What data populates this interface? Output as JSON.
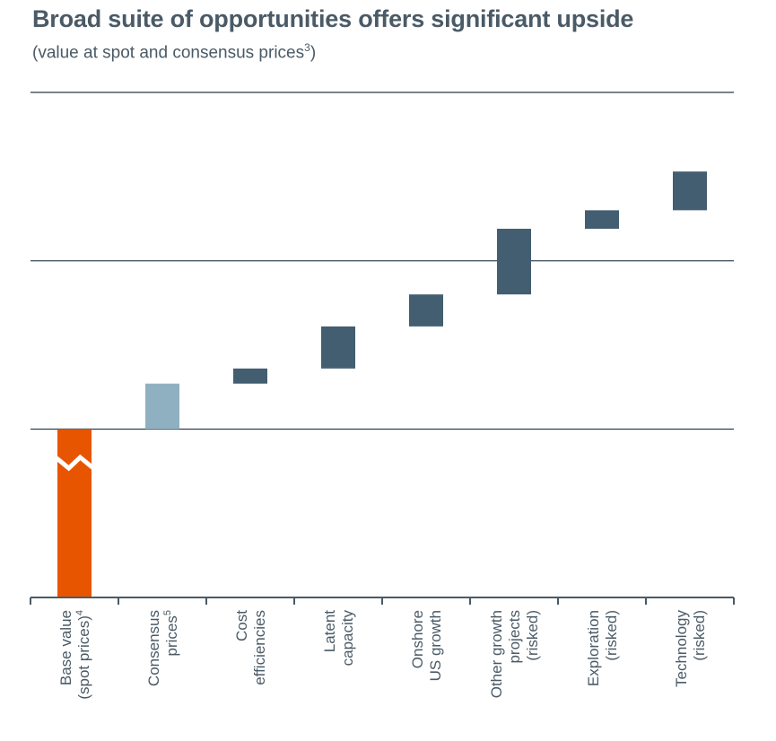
{
  "title": "Broad suite of opportunities offers significant upside",
  "subtitle": "(value at spot and consensus prices",
  "subtitle_sup": "3",
  "subtitle_close": ")",
  "colors": {
    "base": "#e85500",
    "consensus": "#8fb0c0",
    "increment": "#435e70",
    "grid": "#4a5a66",
    "text": "#4a5a66"
  },
  "chart_data": {
    "type": "bar",
    "subtype": "waterfall",
    "categories": [
      {
        "lines": [
          "Base value",
          "(spot prices)"
        ],
        "sup": "4"
      },
      {
        "lines": [
          "Consensus",
          "prices"
        ],
        "sup": "5"
      },
      {
        "lines": [
          "Cost",
          "efficiencies"
        ],
        "sup": ""
      },
      {
        "lines": [
          "Latent",
          "capacity"
        ],
        "sup": ""
      },
      {
        "lines": [
          "Onshore",
          "US growth"
        ],
        "sup": ""
      },
      {
        "lines": [
          "Other growth",
          "projects",
          "(risked)"
        ],
        "sup": ""
      },
      {
        "lines": [
          "Exploration",
          "(risked)"
        ],
        "sup": ""
      },
      {
        "lines": [
          "Technology",
          "(risked)"
        ],
        "sup": ""
      }
    ],
    "bars": [
      {
        "start": 0,
        "end": 1.0,
        "kind": "base",
        "axis_break": true
      },
      {
        "start": 1.0,
        "end": 1.27,
        "kind": "consensus"
      },
      {
        "start": 1.27,
        "end": 1.36,
        "kind": "increment"
      },
      {
        "start": 1.36,
        "end": 1.61,
        "kind": "increment"
      },
      {
        "start": 1.61,
        "end": 1.8,
        "kind": "increment"
      },
      {
        "start": 1.8,
        "end": 2.19,
        "kind": "increment"
      },
      {
        "start": 2.19,
        "end": 2.3,
        "kind": "increment"
      },
      {
        "start": 2.3,
        "end": 2.53,
        "kind": "increment"
      }
    ],
    "ylim": [
      0,
      3
    ],
    "gridlines": [
      1,
      2,
      3
    ],
    "y_tick_labels": false,
    "xlabel": "",
    "ylabel": ""
  }
}
